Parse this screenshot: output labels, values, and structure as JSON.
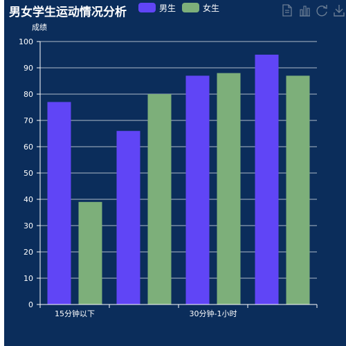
{
  "chart_data": {
    "type": "bar",
    "title": "男女学生运动情况分析",
    "ylabel": "成绩",
    "xlabel": "",
    "ylim": [
      0,
      100
    ],
    "y_ticks": [
      "0",
      "10",
      "20",
      "30",
      "40",
      "50",
      "60",
      "70",
      "80",
      "90",
      "100"
    ],
    "categories": [
      "15分钟以下",
      "",
      "30分钟-1小时",
      ""
    ],
    "series": [
      {
        "name": "男生",
        "values": [
          77,
          66,
          87,
          95
        ],
        "color": "#6045f6"
      },
      {
        "name": "女生",
        "values": [
          39,
          80,
          88,
          87
        ],
        "color": "#7daf7a"
      }
    ],
    "grid": true,
    "legend_position": "top"
  },
  "colors": {
    "background": "#0b2d5b",
    "axis": "#ffffff",
    "toolbox_icon": "#6a7d94"
  },
  "toolbox": [
    {
      "name": "data-view-icon"
    },
    {
      "name": "bar-chart-icon"
    },
    {
      "name": "refresh-icon"
    },
    {
      "name": "download-icon"
    }
  ]
}
